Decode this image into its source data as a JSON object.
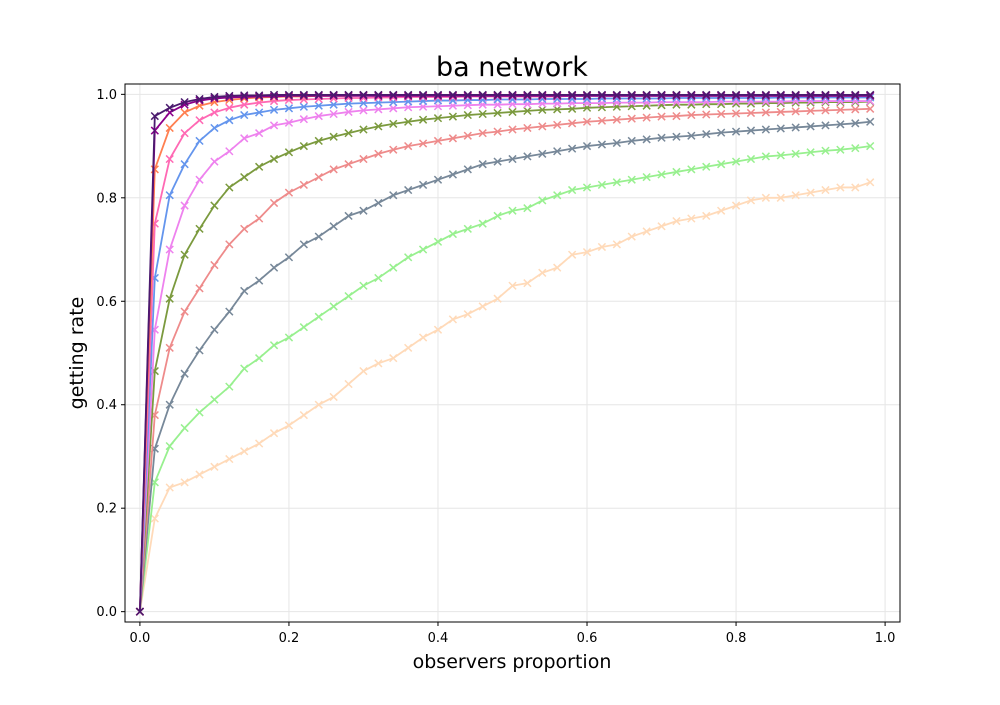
{
  "chart_data": {
    "type": "line",
    "title": "ba network",
    "xlabel": "observers proportion",
    "ylabel": "getting rate",
    "xlim": [
      -0.02,
      1.02
    ],
    "ylim": [
      -0.02,
      1.02
    ],
    "xticks": [
      0.0,
      0.2,
      0.4,
      0.6,
      0.8,
      1.0
    ],
    "xtick_labels": [
      "0.0",
      "0.2",
      "0.4",
      "0.6",
      "0.8",
      "1.0"
    ],
    "yticks": [
      0.0,
      0.2,
      0.4,
      0.6,
      0.8,
      1.0
    ],
    "ytick_labels": [
      "0.0",
      "0.2",
      "0.4",
      "0.6",
      "0.8",
      "1.0"
    ],
    "grid": true,
    "marker": "x",
    "x": [
      0,
      0.02,
      0.04,
      0.06,
      0.08,
      0.1,
      0.12,
      0.14,
      0.16,
      0.18,
      0.2,
      0.22,
      0.24,
      0.26,
      0.28,
      0.3,
      0.32,
      0.34,
      0.36,
      0.38,
      0.4,
      0.42,
      0.44,
      0.46,
      0.48,
      0.5,
      0.52,
      0.54,
      0.56,
      0.58,
      0.6,
      0.62,
      0.64,
      0.66,
      0.68,
      0.7,
      0.72,
      0.74,
      0.76,
      0.78,
      0.8,
      0.82,
      0.84,
      0.86,
      0.88,
      0.9,
      0.92,
      0.94,
      0.96,
      0.98
    ],
    "series": [
      {
        "color": "#ffdab9",
        "values": [
          0,
          0.18,
          0.24,
          0.25,
          0.265,
          0.28,
          0.295,
          0.31,
          0.325,
          0.345,
          0.36,
          0.38,
          0.4,
          0.415,
          0.44,
          0.465,
          0.48,
          0.49,
          0.51,
          0.53,
          0.545,
          0.565,
          0.575,
          0.59,
          0.605,
          0.63,
          0.635,
          0.655,
          0.665,
          0.69,
          0.695,
          0.705,
          0.71,
          0.725,
          0.735,
          0.745,
          0.755,
          0.76,
          0.765,
          0.775,
          0.785,
          0.795,
          0.8,
          0.8,
          0.805,
          0.81,
          0.815,
          0.82,
          0.82,
          0.83
        ]
      },
      {
        "color": "#98f08f",
        "values": [
          0,
          0.25,
          0.32,
          0.355,
          0.385,
          0.41,
          0.435,
          0.47,
          0.49,
          0.515,
          0.53,
          0.55,
          0.57,
          0.59,
          0.61,
          0.63,
          0.645,
          0.665,
          0.685,
          0.7,
          0.715,
          0.73,
          0.74,
          0.75,
          0.765,
          0.775,
          0.78,
          0.795,
          0.805,
          0.815,
          0.82,
          0.825,
          0.83,
          0.835,
          0.84,
          0.845,
          0.85,
          0.855,
          0.86,
          0.865,
          0.87,
          0.875,
          0.88,
          0.882,
          0.885,
          0.888,
          0.891,
          0.893,
          0.896,
          0.9
        ]
      },
      {
        "color": "#778899",
        "values": [
          0,
          0.315,
          0.4,
          0.46,
          0.505,
          0.545,
          0.58,
          0.62,
          0.64,
          0.665,
          0.685,
          0.71,
          0.725,
          0.745,
          0.765,
          0.775,
          0.79,
          0.805,
          0.815,
          0.825,
          0.835,
          0.845,
          0.855,
          0.865,
          0.87,
          0.875,
          0.88,
          0.885,
          0.89,
          0.895,
          0.9,
          0.903,
          0.906,
          0.91,
          0.913,
          0.916,
          0.918,
          0.92,
          0.923,
          0.926,
          0.928,
          0.93,
          0.932,
          0.934,
          0.936,
          0.938,
          0.94,
          0.942,
          0.944,
          0.947
        ]
      },
      {
        "color": "#ee8b8b",
        "values": [
          0,
          0.38,
          0.51,
          0.58,
          0.625,
          0.67,
          0.71,
          0.74,
          0.76,
          0.79,
          0.81,
          0.825,
          0.84,
          0.855,
          0.865,
          0.875,
          0.885,
          0.893,
          0.9,
          0.905,
          0.91,
          0.915,
          0.92,
          0.925,
          0.928,
          0.932,
          0.935,
          0.938,
          0.941,
          0.944,
          0.947,
          0.949,
          0.951,
          0.953,
          0.955,
          0.957,
          0.958,
          0.96,
          0.961,
          0.962,
          0.963,
          0.964,
          0.965,
          0.966,
          0.967,
          0.968,
          0.969,
          0.97,
          0.971,
          0.972
        ]
      },
      {
        "color": "#7b9a3e",
        "values": [
          0,
          0.465,
          0.605,
          0.69,
          0.74,
          0.785,
          0.82,
          0.84,
          0.86,
          0.875,
          0.888,
          0.9,
          0.91,
          0.918,
          0.925,
          0.932,
          0.938,
          0.943,
          0.947,
          0.951,
          0.954,
          0.957,
          0.96,
          0.962,
          0.964,
          0.966,
          0.968,
          0.97,
          0.971,
          0.972,
          0.974,
          0.975,
          0.976,
          0.977,
          0.978,
          0.979,
          0.98,
          0.98,
          0.981,
          0.981,
          0.982,
          0.982,
          0.983,
          0.983,
          0.984,
          0.984,
          0.985,
          0.985,
          0.985,
          0.986
        ]
      },
      {
        "color": "#ee82ee",
        "values": [
          0,
          0.545,
          0.7,
          0.785,
          0.835,
          0.87,
          0.89,
          0.915,
          0.925,
          0.94,
          0.945,
          0.952,
          0.958,
          0.962,
          0.966,
          0.969,
          0.971,
          0.973,
          0.975,
          0.976,
          0.977,
          0.978,
          0.979,
          0.98,
          0.98,
          0.981,
          0.981,
          0.982,
          0.982,
          0.983,
          0.983,
          0.983,
          0.984,
          0.984,
          0.984,
          0.985,
          0.985,
          0.985,
          0.985,
          0.986,
          0.986,
          0.986,
          0.986,
          0.986,
          0.987,
          0.987,
          0.987,
          0.987,
          0.987,
          0.987
        ]
      },
      {
        "color": "#6495ed",
        "values": [
          0,
          0.645,
          0.805,
          0.865,
          0.91,
          0.935,
          0.95,
          0.96,
          0.965,
          0.97,
          0.973,
          0.976,
          0.978,
          0.98,
          0.982,
          0.983,
          0.984,
          0.985,
          0.986,
          0.987,
          0.988,
          0.988,
          0.989,
          0.989,
          0.99,
          0.99,
          0.99,
          0.991,
          0.991,
          0.991,
          0.991,
          0.992,
          0.992,
          0.992,
          0.992,
          0.992,
          0.993,
          0.993,
          0.993,
          0.993,
          0.993,
          0.993,
          0.993,
          0.994,
          0.994,
          0.994,
          0.994,
          0.994,
          0.994,
          0.994
        ]
      },
      {
        "color": "#ff69b4",
        "values": [
          0,
          0.75,
          0.875,
          0.925,
          0.95,
          0.965,
          0.974,
          0.98,
          0.984,
          0.987,
          0.989,
          0.99,
          0.991,
          0.992,
          0.993,
          0.993,
          0.994,
          0.994,
          0.995,
          0.995,
          0.995,
          0.995,
          0.996,
          0.996,
          0.996,
          0.996,
          0.996,
          0.996,
          0.996,
          0.997,
          0.997,
          0.997,
          0.997,
          0.997,
          0.997,
          0.997,
          0.997,
          0.997,
          0.997,
          0.997,
          0.997,
          0.997,
          0.997,
          0.997,
          0.997,
          0.997,
          0.997,
          0.997,
          0.997,
          0.997
        ]
      },
      {
        "color": "#ff7f50",
        "values": [
          0,
          0.855,
          0.935,
          0.965,
          0.978,
          0.985,
          0.989,
          0.992,
          0.994,
          0.995,
          0.996,
          0.996,
          0.997,
          0.997,
          0.997,
          0.998,
          0.998,
          0.998,
          0.998,
          0.998,
          0.998,
          0.998,
          0.998,
          0.998,
          0.998,
          0.998,
          0.998,
          0.998,
          0.998,
          0.998,
          0.998,
          0.998,
          0.998,
          0.998,
          0.998,
          0.998,
          0.998,
          0.998,
          0.998,
          0.998,
          0.998,
          0.998,
          0.998,
          0.998,
          0.998,
          0.998,
          0.998,
          0.998,
          0.998,
          0.998
        ]
      },
      {
        "color": "#8b008b",
        "values": [
          0,
          0.93,
          0.965,
          0.98,
          0.988,
          0.992,
          0.994,
          0.995,
          0.996,
          0.996,
          0.997,
          0.997,
          0.997,
          0.997,
          0.997,
          0.997,
          0.997,
          0.997,
          0.997,
          0.997,
          0.997,
          0.997,
          0.997,
          0.997,
          0.997,
          0.997,
          0.997,
          0.997,
          0.997,
          0.997,
          0.997,
          0.997,
          0.997,
          0.997,
          0.997,
          0.997,
          0.997,
          0.997,
          0.997,
          0.997,
          0.997,
          0.997,
          0.997,
          0.997,
          0.997,
          0.997,
          0.997,
          0.997,
          0.997,
          0.997
        ]
      },
      {
        "color": "#4b1a6e",
        "values": [
          0,
          0.958,
          0.974,
          0.985,
          0.991,
          0.995,
          0.997,
          0.998,
          0.998,
          0.999,
          0.999,
          0.999,
          0.999,
          0.999,
          0.999,
          0.999,
          0.999,
          0.999,
          0.999,
          0.999,
          0.999,
          0.999,
          0.999,
          0.999,
          0.999,
          0.999,
          0.999,
          0.999,
          0.999,
          0.999,
          0.999,
          0.999,
          0.999,
          0.999,
          0.999,
          0.999,
          0.999,
          0.999,
          0.999,
          0.999,
          0.999,
          0.999,
          0.999,
          0.999,
          0.999,
          0.999,
          0.999,
          0.999,
          0.999,
          0.999
        ]
      }
    ]
  }
}
